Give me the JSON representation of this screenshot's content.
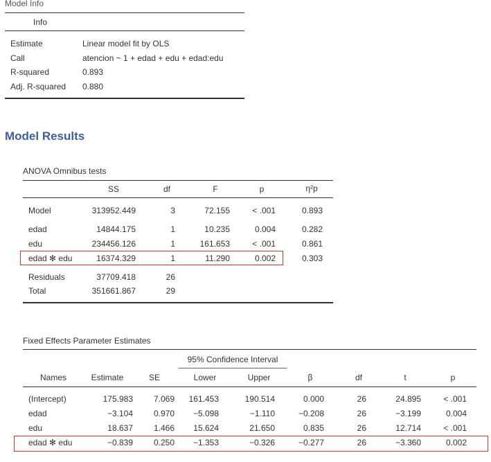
{
  "model_info": {
    "section_label": "Model Info",
    "header": "Info",
    "rows": [
      {
        "label": "Estimate",
        "value": "Linear model fit by OLS"
      },
      {
        "label": "Call",
        "value": "atencion ~ 1 + edad + edu + edad:edu"
      },
      {
        "label": "R-squared",
        "value": "0.893"
      },
      {
        "label": "Adj. R-squared",
        "value": "0.880"
      }
    ]
  },
  "model_results_title": "Model Results",
  "anova": {
    "title": "ANOVA Omnibus tests",
    "headers": [
      "",
      "SS",
      "df",
      "F",
      "p",
      "η²p"
    ],
    "rows": [
      [
        "Model",
        "313952.449",
        "3",
        "72.155",
        "< .001",
        "0.893"
      ],
      [
        "edad",
        "14844.175",
        "1",
        "10.235",
        "0.004",
        "0.282"
      ],
      [
        "edu",
        "234456.126",
        "1",
        "161.653",
        "< .001",
        "0.861"
      ],
      [
        "edad ✻ edu",
        "16374.329",
        "1",
        "11.290",
        "0.002",
        "0.303"
      ],
      [
        "Residuals",
        "37709.418",
        "26",
        "",
        "",
        ""
      ],
      [
        "Total",
        "351661.867",
        "29",
        "",
        "",
        ""
      ]
    ]
  },
  "fixed": {
    "title": "Fixed Effects Parameter Estimates",
    "ci_header": "95% Confidence Interval",
    "headers": [
      "Names",
      "Estimate",
      "SE",
      "Lower",
      "Upper",
      "β",
      "df",
      "t",
      "p"
    ],
    "rows": [
      [
        "(Intercept)",
        "175.983",
        "7.069",
        "161.453",
        "190.514",
        "0.000",
        "26",
        "24.895",
        "< .001"
      ],
      [
        "edad",
        "−3.104",
        "0.970",
        "−5.098",
        "−1.110",
        "−0.208",
        "26",
        "−3.199",
        "0.004"
      ],
      [
        "edu",
        "18.637",
        "1.466",
        "15.624",
        "21.650",
        "0.835",
        "26",
        "12.714",
        "< .001"
      ],
      [
        "edad ✻ edu",
        "−0.839",
        "0.250",
        "−1.353",
        "−0.326",
        "−0.277",
        "26",
        "−3.360",
        "0.002"
      ]
    ]
  },
  "colors": {
    "title": "#3c5f9a",
    "highlight": "#c0392b"
  }
}
